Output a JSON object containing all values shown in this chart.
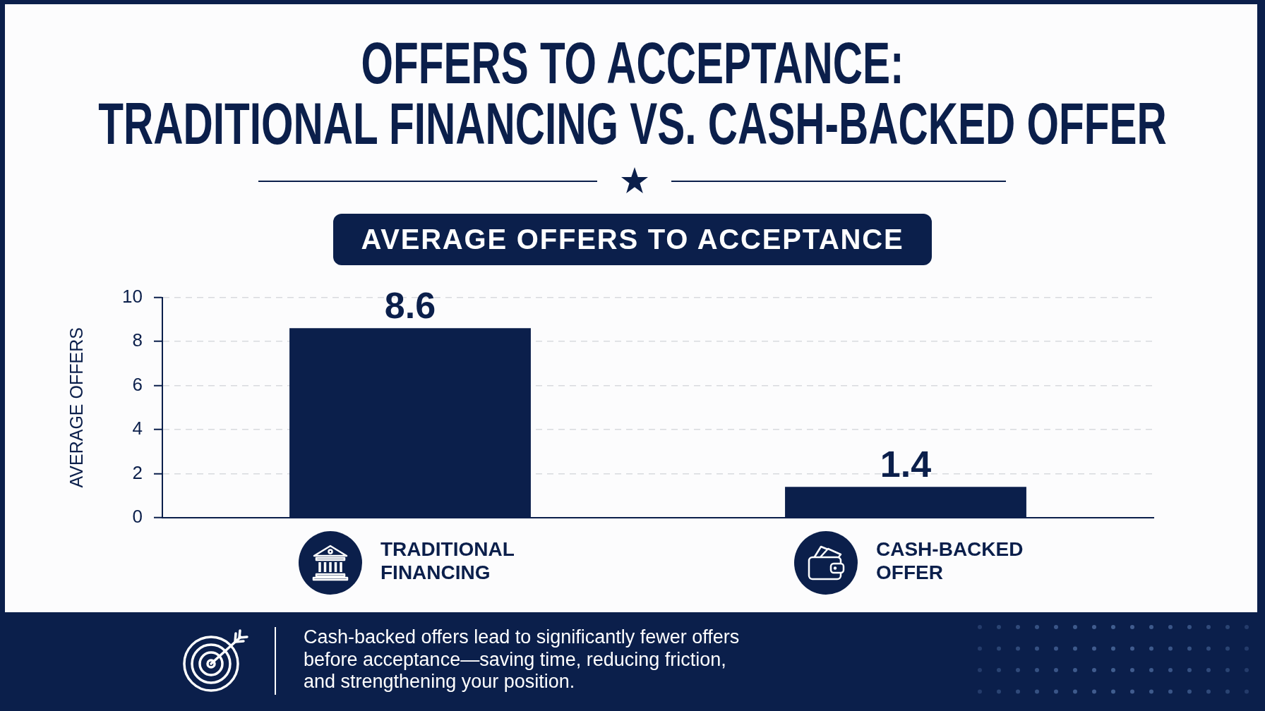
{
  "chart_data": {
    "type": "bar",
    "title": "OFFERS TO ACCEPTANCE:\nTRADITIONAL FINANCING VS. CASH-BACKED OFFER",
    "subtitle": "AVERAGE OFFERS TO ACCEPTANCE",
    "ylabel": "AVERAGE OFFERS",
    "categories": [
      "TRADITIONAL FINANCING",
      "CASH-BACKED OFFER"
    ],
    "values": [
      8.6,
      1.4
    ],
    "color": "#0b1f4b",
    "ylim": [
      0,
      10
    ],
    "yticks": [
      0,
      2,
      4,
      6,
      8,
      10
    ],
    "grid": "y",
    "data_labels": true,
    "annotations": [
      "Cash-backed offers lead to significantly fewer offers before acceptance—saving time, reducing friction, and strengthening your position."
    ]
  }
}
